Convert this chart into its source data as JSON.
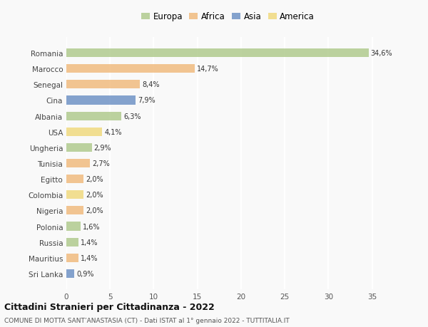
{
  "categories": [
    "Romania",
    "Marocco",
    "Senegal",
    "Cina",
    "Albania",
    "USA",
    "Ungheria",
    "Tunisia",
    "Egitto",
    "Colombia",
    "Nigeria",
    "Polonia",
    "Russia",
    "Mauritius",
    "Sri Lanka"
  ],
  "values": [
    34.6,
    14.7,
    8.4,
    7.9,
    6.3,
    4.1,
    2.9,
    2.7,
    2.0,
    2.0,
    2.0,
    1.6,
    1.4,
    1.4,
    0.9
  ],
  "labels": [
    "34,6%",
    "14,7%",
    "8,4%",
    "7,9%",
    "6,3%",
    "4,1%",
    "2,9%",
    "2,7%",
    "2,0%",
    "2,0%",
    "2,0%",
    "1,6%",
    "1,4%",
    "1,4%",
    "0,9%"
  ],
  "colors": [
    "#aec98a",
    "#f0b97a",
    "#f0b97a",
    "#6b8fc4",
    "#aec98a",
    "#f0d97a",
    "#aec98a",
    "#f0b97a",
    "#f0b97a",
    "#f0d97a",
    "#f0b97a",
    "#aec98a",
    "#aec98a",
    "#f0b97a",
    "#6b8fc4"
  ],
  "legend_labels": [
    "Europa",
    "Africa",
    "Asia",
    "America"
  ],
  "legend_colors": [
    "#aec98a",
    "#f0b97a",
    "#6b8fc4",
    "#f0d97a"
  ],
  "title": "Cittadini Stranieri per Cittadinanza - 2022",
  "subtitle": "COMUNE DI MOTTA SANT’ANASTASIA (CT) - Dati ISTAT al 1° gennaio 2022 - TUTTITALIA.IT",
  "xlim": [
    0,
    37
  ],
  "xticks": [
    0,
    5,
    10,
    15,
    20,
    25,
    30,
    35
  ],
  "bg_color": "#f9f9f9",
  "grid_color": "#ffffff",
  "bar_alpha": 0.82,
  "bar_height": 0.55
}
